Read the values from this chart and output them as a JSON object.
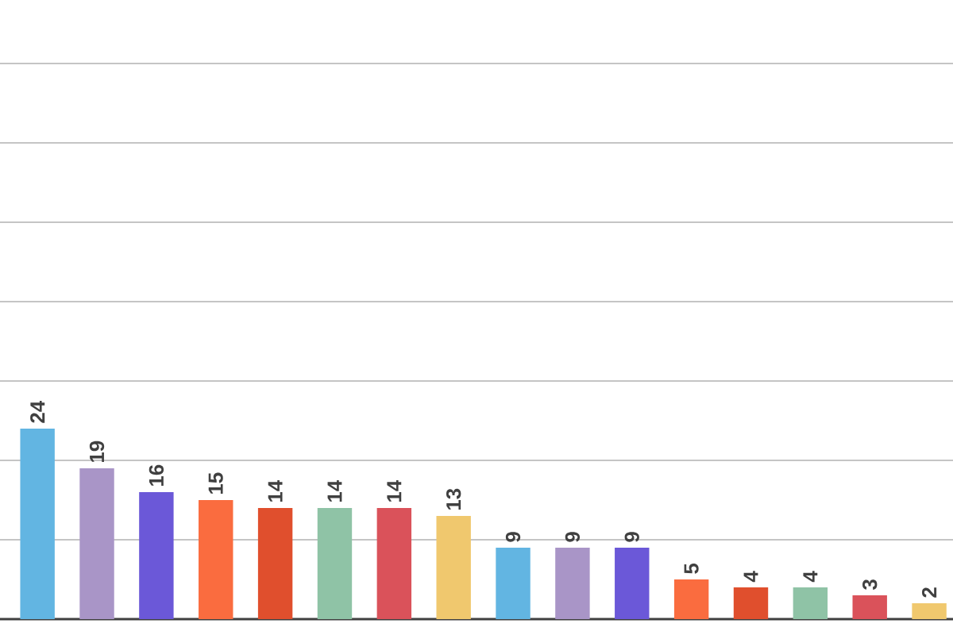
{
  "chart_data": {
    "type": "bar",
    "categories": [
      null,
      null,
      null,
      null,
      null,
      null,
      null,
      null,
      null,
      null,
      null,
      null,
      null,
      null,
      null,
      null
    ],
    "values": [
      24,
      19,
      16,
      15,
      14,
      14,
      14,
      13,
      9,
      9,
      9,
      5,
      4,
      4,
      3,
      2
    ],
    "colors": [
      "#62b5e2",
      "#a995c7",
      "#6b58d8",
      "#fa6c3f",
      "#e04f2d",
      "#8fc3a6",
      "#da525a",
      "#f0c86e",
      "#62b5e2",
      "#a995c7",
      "#6b58d8",
      "#fa6c3f",
      "#e04f2d",
      "#8fc3a6",
      "#da525a",
      "#f0c86e"
    ],
    "ylim": [
      0,
      70
    ],
    "yticks": [
      {
        "value": 10,
        "label": null
      },
      {
        "value": 20,
        "label": null
      },
      {
        "value": 30,
        "label": null
      },
      {
        "value": 40,
        "label": null
      },
      {
        "value": 50,
        "label": null
      },
      {
        "value": 60,
        "label": null
      },
      {
        "value": 70,
        "label": null
      }
    ],
    "grid": "y",
    "data_labels": true
  }
}
